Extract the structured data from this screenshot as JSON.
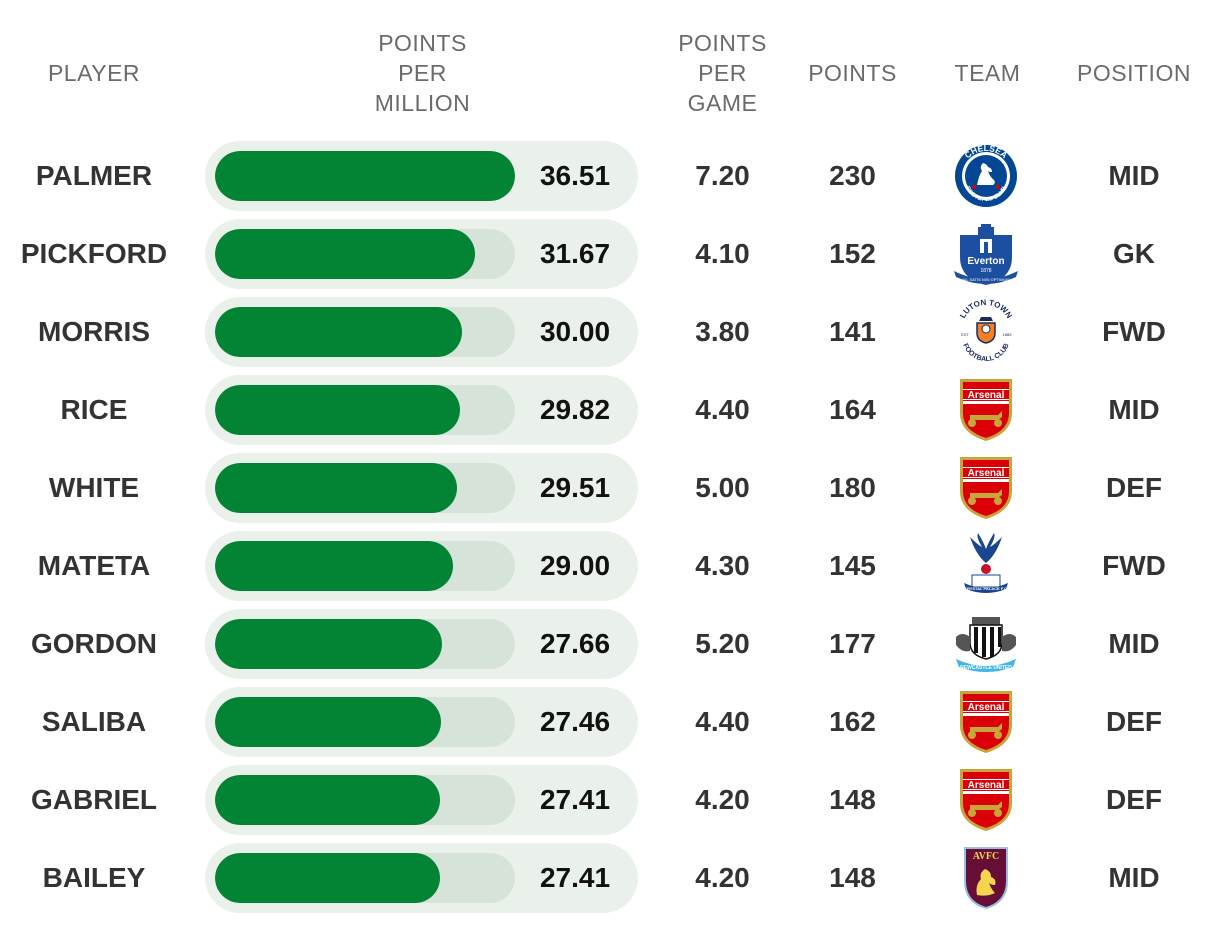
{
  "headers": {
    "player": "PLAYER",
    "ppm": "POINTS\nPER\nMILLION",
    "ppg": "POINTS\nPER\nGAME",
    "points": "POINTS",
    "team": "TEAM",
    "position": "POSITION"
  },
  "colors": {
    "bar_fill": "#028434",
    "bar_track": "#d6e3d8",
    "row_bg": "#e9f1ea"
  },
  "bar_scale_max": 36.51,
  "chart_data": {
    "type": "table",
    "columns": [
      "PLAYER",
      "POINTS PER MILLION",
      "POINTS PER GAME",
      "POINTS",
      "TEAM",
      "POSITION"
    ],
    "rows": [
      {
        "player": "PALMER",
        "ppm": "36.51",
        "ppm_value": 36.51,
        "ppg": "7.20",
        "points": "230",
        "team_icon": "chelsea-crest-icon",
        "team_text": [
          "CHELSEA",
          "FOOTBALL CLUB"
        ],
        "position": "MID"
      },
      {
        "player": "PICKFORD",
        "ppm": "31.67",
        "ppm_value": 31.67,
        "ppg": "4.10",
        "points": "152",
        "team_icon": "everton-crest-icon",
        "team_text": [
          "Everton",
          "1878",
          "NIL SATIS NISI OPTIMUM"
        ],
        "position": "GK"
      },
      {
        "player": "MORRIS",
        "ppm": "30.00",
        "ppm_value": 30.0,
        "ppg": "3.80",
        "points": "141",
        "team_icon": "luton-town-crest-icon",
        "team_text": [
          "LUTON TOWN",
          "FOOTBALL CLUB",
          "EST",
          "1885"
        ],
        "position": "FWD"
      },
      {
        "player": "RICE",
        "ppm": "29.82",
        "ppm_value": 29.82,
        "ppg": "4.40",
        "points": "164",
        "team_icon": "arsenal-crest-icon",
        "team_text": [
          "Arsenal"
        ],
        "position": "MID"
      },
      {
        "player": "WHITE",
        "ppm": "29.51",
        "ppm_value": 29.51,
        "ppg": "5.00",
        "points": "180",
        "team_icon": "arsenal-crest-icon",
        "team_text": [
          "Arsenal"
        ],
        "position": "DEF"
      },
      {
        "player": "MATETA",
        "ppm": "29.00",
        "ppm_value": 29.0,
        "ppg": "4.30",
        "points": "145",
        "team_icon": "crystal-palace-crest-icon",
        "team_text": [
          "CRYSTAL PALACE F.C."
        ],
        "position": "FWD"
      },
      {
        "player": "GORDON",
        "ppm": "27.66",
        "ppm_value": 27.66,
        "ppg": "5.20",
        "points": "177",
        "team_icon": "newcastle-crest-icon",
        "team_text": [
          "NEWCASTLE UNITED"
        ],
        "position": "MID"
      },
      {
        "player": "SALIBA",
        "ppm": "27.46",
        "ppm_value": 27.46,
        "ppg": "4.40",
        "points": "162",
        "team_icon": "arsenal-crest-icon",
        "team_text": [
          "Arsenal"
        ],
        "position": "DEF"
      },
      {
        "player": "GABRIEL",
        "ppm": "27.41",
        "ppm_value": 27.41,
        "ppg": "4.20",
        "points": "148",
        "team_icon": "arsenal-crest-icon",
        "team_text": [
          "Arsenal"
        ],
        "position": "DEF"
      },
      {
        "player": "BAILEY",
        "ppm": "27.41",
        "ppm_value": 27.41,
        "ppg": "4.20",
        "points": "148",
        "team_icon": "aston-villa-crest-icon",
        "team_text": [
          "AVFC"
        ],
        "position": "MID"
      }
    ]
  }
}
